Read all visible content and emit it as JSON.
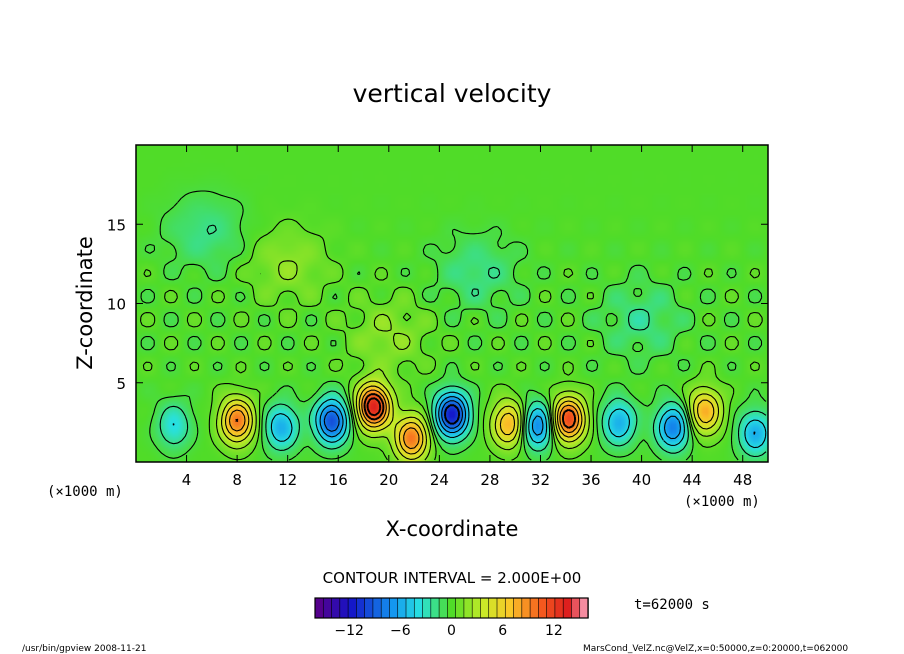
{
  "chart_data": {
    "type": "heatmap",
    "title": "vertical velocity",
    "xlabel": "X-coordinate",
    "ylabel": "Z-coordinate",
    "x_unit": "(×1000 m)",
    "y_unit": "(×1000 m)",
    "xlim": [
      0,
      50
    ],
    "ylim": [
      0,
      20
    ],
    "x_ticks": [
      4,
      8,
      12,
      16,
      20,
      24,
      28,
      32,
      36,
      40,
      44,
      48
    ],
    "y_ticks": [
      5,
      10,
      15
    ],
    "contour_interval": "CONTOUR INTERVAL = 2.000E+00",
    "time_label": "t=62000 s",
    "colorbar": {
      "range": [
        -16,
        16
      ],
      "ticks": [
        -12,
        -6,
        0,
        6,
        12
      ],
      "levels": 33,
      "colormap": "rainbow"
    },
    "features": [
      {
        "x": 3.0,
        "z": 2.3,
        "value": -4
      },
      {
        "x": 8.0,
        "z": 2.6,
        "value": 10
      },
      {
        "x": 11.5,
        "z": 2.2,
        "value": -6
      },
      {
        "x": 15.5,
        "z": 2.6,
        "value": -10
      },
      {
        "x": 18.8,
        "z": 3.5,
        "value": 14
      },
      {
        "x": 21.8,
        "z": 1.5,
        "value": 10
      },
      {
        "x": 25.0,
        "z": 3.0,
        "value": -12
      },
      {
        "x": 29.5,
        "z": 2.4,
        "value": 8
      },
      {
        "x": 31.8,
        "z": 2.3,
        "value": -8
      },
      {
        "x": 34.2,
        "z": 2.7,
        "value": 12
      },
      {
        "x": 38.2,
        "z": 2.5,
        "value": -6
      },
      {
        "x": 42.5,
        "z": 2.2,
        "value": -8
      },
      {
        "x": 45.0,
        "z": 3.2,
        "value": 8
      },
      {
        "x": 49.0,
        "z": 1.8,
        "value": -6
      },
      {
        "x": 5.5,
        "z": 14.5,
        "value": -2
      },
      {
        "x": 20.0,
        "z": 8.0,
        "value": 2
      },
      {
        "x": 27.0,
        "z": 12.0,
        "value": -2
      },
      {
        "x": 40.0,
        "z": 9.0,
        "value": -2
      },
      {
        "x": 12.0,
        "z": 12.5,
        "value": 2
      }
    ]
  },
  "footer": {
    "left": "/usr/bin/gpview   2008-11-21",
    "right": "MarsCond_VelZ.nc@VelZ,x=0:50000,z=0:20000,t=062000"
  }
}
